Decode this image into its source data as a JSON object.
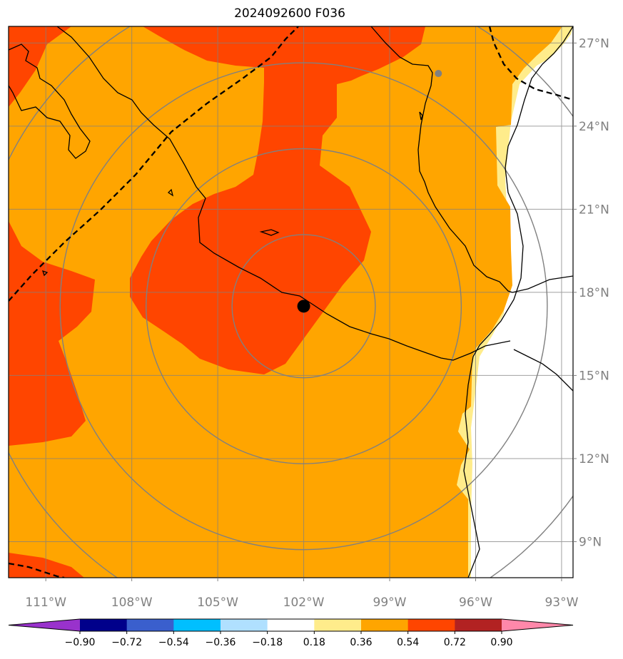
{
  "title": "2024092600 F036",
  "map": {
    "lon_range": [
      -112.3,
      -92.6
    ],
    "lat_range": [
      7.7,
      27.6
    ],
    "storm_center": {
      "lon": -102.0,
      "lat": 17.5
    },
    "secondary_marker": {
      "lon": -97.3,
      "lat": 25.9
    },
    "range_rings_deg": [
      2.5,
      5.5,
      8.5,
      11.5
    ],
    "lon_ticks": [
      {
        "value": -111,
        "label": "111°W"
      },
      {
        "value": -108,
        "label": "108°W"
      },
      {
        "value": -105,
        "label": "105°W"
      },
      {
        "value": -102,
        "label": "102°W"
      },
      {
        "value": -99,
        "label": "99°W"
      },
      {
        "value": -96,
        "label": "96°W"
      },
      {
        "value": -93,
        "label": "93°W"
      }
    ],
    "lat_ticks": [
      {
        "value": 27,
        "label": "27°N"
      },
      {
        "value": 24,
        "label": "24°N"
      },
      {
        "value": 21,
        "label": "21°N"
      },
      {
        "value": 18,
        "label": "18°N"
      },
      {
        "value": 15,
        "label": "15°N"
      },
      {
        "value": 12,
        "label": "12°N"
      },
      {
        "value": 9,
        "label": "9°N"
      }
    ]
  },
  "colorbar": {
    "levels": [
      "−0.90",
      "−0.72",
      "−0.54",
      "−0.36",
      "−0.18",
      "0.18",
      "0.36",
      "0.54",
      "0.72",
      "0.90"
    ],
    "colors": [
      "#9932cc",
      "#00008b",
      "#3a5fcd",
      "#00bfff",
      "#b0e0ff",
      "#ffffff",
      "#ffec8b",
      "#ffa500",
      "#ff4500",
      "#b22222",
      "#ff88aa"
    ]
  },
  "colors": {
    "orange": "#ffa500",
    "red": "#ff4500",
    "yellow": "#ffec8b",
    "grid": "#808080"
  }
}
